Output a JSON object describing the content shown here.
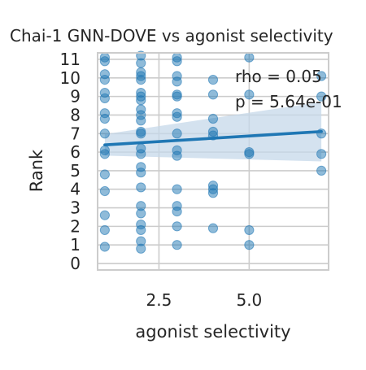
{
  "chart_data": {
    "type": "scatter",
    "title": "Chai-1 GNN-DOVE vs agonist selectivity",
    "xlabel": "agonist selectivity",
    "ylabel": "Rank",
    "xlim": [
      0.8,
      7.2
    ],
    "ylim": [
      -0.35,
      11.35
    ],
    "x_ticks": [
      2.5,
      5.0
    ],
    "x_tick_labels": [
      "2.5",
      "5.0"
    ],
    "y_ticks": [
      0,
      1,
      2,
      3,
      4,
      5,
      6,
      7,
      8,
      9,
      10,
      11
    ],
    "y_tick_labels": [
      "0",
      "1",
      "2",
      "3",
      "4",
      "5",
      "6",
      "7",
      "8",
      "9",
      "10",
      "11"
    ],
    "grid": true,
    "annotations": [
      "rho = 0.05",
      "p = 5.64e-01"
    ],
    "regression": {
      "x": [
        1.0,
        7.0
      ],
      "y": [
        6.39,
        7.11
      ],
      "ci_lower": [
        5.81,
        5.5
      ],
      "ci_upper": [
        6.97,
        8.7
      ]
    },
    "colors": {
      "points": "#1f77b4",
      "line": "#1f77b4",
      "band": "#c6d8ea",
      "grid": "#cccccc",
      "frame": "#cccccc"
    },
    "points": [
      [
        1,
        0.9
      ],
      [
        1,
        1.8
      ],
      [
        1,
        2.6
      ],
      [
        1,
        3.9
      ],
      [
        1,
        4.8
      ],
      [
        1,
        5.9
      ],
      [
        1,
        6.1
      ],
      [
        1,
        7.0
      ],
      [
        1,
        7.8
      ],
      [
        1,
        8.1
      ],
      [
        1,
        8.9
      ],
      [
        1,
        9.2
      ],
      [
        1,
        9.9
      ],
      [
        1,
        10.9
      ],
      [
        1,
        11.1
      ],
      [
        1,
        10.2
      ],
      [
        2,
        0.8
      ],
      [
        2,
        1.2
      ],
      [
        2,
        1.8
      ],
      [
        2,
        2.1
      ],
      [
        2,
        2.7
      ],
      [
        2,
        3.1
      ],
      [
        2,
        4.1
      ],
      [
        2,
        4.9
      ],
      [
        2,
        5.2
      ],
      [
        2,
        5.9
      ],
      [
        2,
        6.2
      ],
      [
        2,
        7.0
      ],
      [
        2,
        7.1
      ],
      [
        2,
        7.7
      ],
      [
        2,
        8.0
      ],
      [
        2,
        8.3
      ],
      [
        2,
        8.8
      ],
      [
        2,
        9.0
      ],
      [
        2,
        9.2
      ],
      [
        2,
        9.9
      ],
      [
        2,
        10.1
      ],
      [
        2,
        10.3
      ],
      [
        2,
        10.8
      ],
      [
        2,
        11.2
      ],
      [
        3,
        1.0
      ],
      [
        3,
        2.0
      ],
      [
        3,
        2.8
      ],
      [
        3,
        3.1
      ],
      [
        3,
        4.0
      ],
      [
        3,
        5.8
      ],
      [
        3,
        6.1
      ],
      [
        3,
        7.0
      ],
      [
        3,
        7.9
      ],
      [
        3,
        8.1
      ],
      [
        3,
        9.0
      ],
      [
        3,
        9.1
      ],
      [
        3,
        10.1
      ],
      [
        3,
        10.9
      ],
      [
        3,
        11.1
      ],
      [
        3,
        9.8
      ],
      [
        4,
        1.9
      ],
      [
        4,
        3.8
      ],
      [
        4,
        4.0
      ],
      [
        4,
        4.2
      ],
      [
        4,
        6.9
      ],
      [
        4,
        7.1
      ],
      [
        4,
        7.8
      ],
      [
        4,
        9.1
      ],
      [
        4,
        9.9
      ],
      [
        5,
        1.0
      ],
      [
        5,
        1.8
      ],
      [
        5,
        5.9
      ],
      [
        5,
        6.0
      ],
      [
        5,
        9.1
      ],
      [
        5,
        11.1
      ],
      [
        7,
        5.0
      ],
      [
        7,
        5.9
      ],
      [
        7,
        7.0
      ],
      [
        7,
        9.0
      ],
      [
        7,
        10.1
      ]
    ]
  }
}
